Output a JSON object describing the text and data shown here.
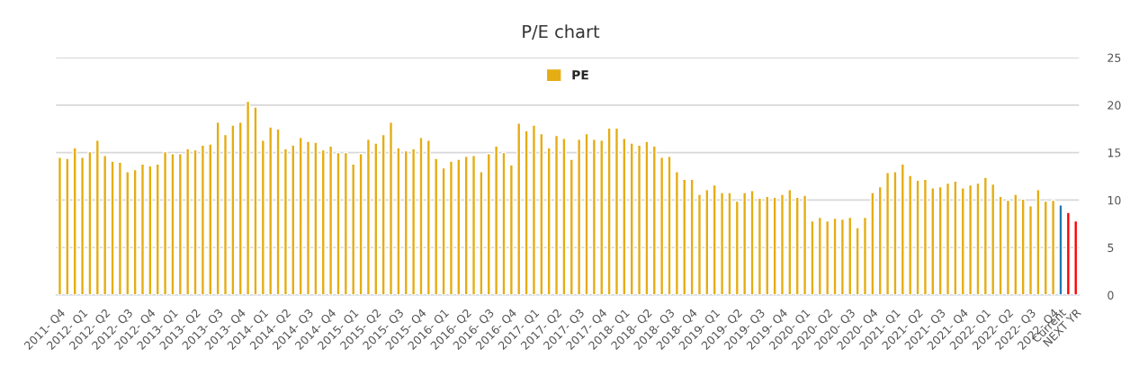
{
  "chart_data": {
    "type": "bar",
    "title": "P/E chart",
    "categories": [
      "2011- Q4",
      null,
      null,
      "2012- Q1",
      null,
      null,
      "2012- Q2",
      null,
      null,
      "2012- Q3",
      null,
      null,
      "2012- Q4",
      null,
      null,
      "2013- Q1",
      null,
      null,
      "2013- Q2",
      null,
      null,
      "2013- Q3",
      null,
      null,
      "2013- Q4",
      null,
      null,
      "2014- Q1",
      null,
      null,
      "2014- Q2",
      null,
      null,
      "2014- Q3",
      null,
      null,
      "2014- Q4",
      null,
      null,
      "2015- Q1",
      null,
      null,
      "2015- Q2",
      null,
      null,
      "2015- Q3",
      null,
      null,
      "2015- Q4",
      null,
      null,
      "2016- Q1",
      null,
      null,
      "2016- Q2",
      null,
      null,
      "2016- Q3",
      null,
      null,
      "2016- Q4",
      null,
      null,
      "2017- Q1",
      null,
      null,
      "2017- Q2",
      null,
      null,
      "2017- Q3",
      null,
      null,
      "2017- Q4",
      null,
      null,
      "2018- Q1",
      null,
      null,
      "2018- Q2",
      null,
      null,
      "2018- Q3",
      null,
      null,
      "2018- Q4",
      null,
      null,
      "2019- Q1",
      null,
      null,
      "2019- Q2",
      null,
      null,
      "2019- Q3",
      null,
      null,
      "2019- Q4",
      null,
      null,
      "2020- Q1",
      null,
      null,
      "2020- Q2",
      null,
      null,
      "2020- Q3",
      null,
      null,
      "2020- Q4",
      null,
      null,
      "2021- Q1",
      null,
      null,
      "2021- Q2",
      null,
      null,
      "2021- Q3",
      null,
      null,
      "2021- Q4",
      null,
      null,
      "2022- Q1",
      null,
      null,
      "2022- Q2",
      null,
      null,
      "2022- Q3",
      null,
      null,
      "2022- Q4",
      "Current",
      null,
      "NEXT YR"
    ],
    "series": [
      {
        "name": "PE",
        "color": "#e5ad13",
        "values": [
          14.5,
          14.4,
          15.5,
          14.5,
          15.1,
          16.3,
          14.7,
          14.1,
          14.0,
          13.0,
          13.2,
          13.8,
          13.6,
          13.8,
          15.1,
          14.9,
          14.9,
          15.4,
          15.3,
          15.8,
          15.9,
          18.2,
          16.9,
          17.9,
          18.2,
          20.4,
          19.8,
          16.3,
          17.7,
          17.5,
          15.4,
          15.8,
          16.6,
          16.2,
          16.1,
          15.3,
          15.7,
          15.0,
          15.0,
          13.8,
          14.9,
          16.4,
          16.0,
          16.9,
          18.2,
          15.5,
          15.2,
          15.4,
          16.6,
          16.3,
          14.4,
          13.4,
          14.1,
          14.3,
          14.6,
          14.7,
          13.0,
          14.9,
          15.7,
          15.0,
          13.7,
          18.1,
          17.3,
          17.9,
          17.0,
          15.5,
          16.8,
          16.5,
          14.3,
          16.4,
          17.0,
          16.4,
          16.3,
          17.6,
          17.6,
          16.5,
          16.0,
          15.8,
          16.2,
          15.7,
          14.5,
          14.6,
          13.0,
          12.2,
          12.2,
          10.6,
          11.1,
          11.6,
          10.8,
          10.8,
          9.9,
          10.8,
          11.0,
          10.2,
          10.4,
          10.3,
          10.6,
          11.1,
          10.3,
          10.5,
          7.8,
          8.2,
          7.8,
          8.1,
          8.0,
          8.2,
          7.1,
          8.2,
          10.8,
          11.4,
          12.9,
          13.0,
          13.8,
          12.6,
          12.1,
          12.2,
          11.3,
          11.4,
          11.8,
          12.0,
          11.3,
          11.6,
          11.8,
          12.4,
          11.7,
          10.4,
          10.0,
          10.6,
          10.1,
          9.4,
          11.1,
          9.9,
          10.0,
          9.5,
          8.7,
          7.8
        ],
        "colors": [
          "#e5ad13",
          "#e5ad13",
          "#e5ad13",
          "#e5ad13",
          "#e5ad13",
          "#e5ad13",
          "#e5ad13",
          "#e5ad13",
          "#e5ad13",
          "#e5ad13",
          "#e5ad13",
          "#e5ad13",
          "#e5ad13",
          "#e5ad13",
          "#e5ad13",
          "#e5ad13",
          "#e5ad13",
          "#e5ad13",
          "#e5ad13",
          "#e5ad13",
          "#e5ad13",
          "#e5ad13",
          "#e5ad13",
          "#e5ad13",
          "#e5ad13",
          "#e5ad13",
          "#e5ad13",
          "#e5ad13",
          "#e5ad13",
          "#e5ad13",
          "#e5ad13",
          "#e5ad13",
          "#e5ad13",
          "#e5ad13",
          "#e5ad13",
          "#e5ad13",
          "#e5ad13",
          "#e5ad13",
          "#e5ad13",
          "#e5ad13",
          "#e5ad13",
          "#e5ad13",
          "#e5ad13",
          "#e5ad13",
          "#e5ad13",
          "#e5ad13",
          "#e5ad13",
          "#e5ad13",
          "#e5ad13",
          "#e5ad13",
          "#e5ad13",
          "#e5ad13",
          "#e5ad13",
          "#e5ad13",
          "#e5ad13",
          "#e5ad13",
          "#e5ad13",
          "#e5ad13",
          "#e5ad13",
          "#e5ad13",
          "#e5ad13",
          "#e5ad13",
          "#e5ad13",
          "#e5ad13",
          "#e5ad13",
          "#e5ad13",
          "#e5ad13",
          "#e5ad13",
          "#e5ad13",
          "#e5ad13",
          "#e5ad13",
          "#e5ad13",
          "#e5ad13",
          "#e5ad13",
          "#e5ad13",
          "#e5ad13",
          "#e5ad13",
          "#e5ad13",
          "#e5ad13",
          "#e5ad13",
          "#e5ad13",
          "#e5ad13",
          "#e5ad13",
          "#e5ad13",
          "#e5ad13",
          "#e5ad13",
          "#e5ad13",
          "#e5ad13",
          "#e5ad13",
          "#e5ad13",
          "#e5ad13",
          "#e5ad13",
          "#e5ad13",
          "#e5ad13",
          "#e5ad13",
          "#e5ad13",
          "#e5ad13",
          "#e5ad13",
          "#e5ad13",
          "#e5ad13",
          "#e5ad13",
          "#e5ad13",
          "#e5ad13",
          "#e5ad13",
          "#e5ad13",
          "#e5ad13",
          "#e5ad13",
          "#e5ad13",
          "#e5ad13",
          "#e5ad13",
          "#e5ad13",
          "#e5ad13",
          "#e5ad13",
          "#e5ad13",
          "#e5ad13",
          "#e5ad13",
          "#e5ad13",
          "#e5ad13",
          "#e5ad13",
          "#e5ad13",
          "#e5ad13",
          "#e5ad13",
          "#e5ad13",
          "#e5ad13",
          "#e5ad13",
          "#e5ad13",
          "#e5ad13",
          "#e5ad13",
          "#e5ad13",
          "#e5ad13",
          "#e5ad13",
          "#e5ad13",
          "#e5ad13",
          "#1f78b4",
          "#ff0000",
          "#ff0000"
        ]
      }
    ],
    "ylim": [
      0,
      25
    ],
    "yticks": [
      0,
      5,
      10,
      15,
      20,
      25
    ],
    "grid": "y",
    "legend": "top"
  }
}
